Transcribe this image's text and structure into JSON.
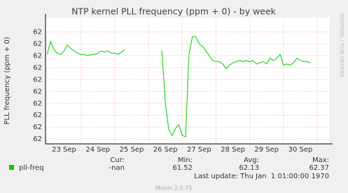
{
  "chart_data": {
    "type": "line",
    "title": "NTP kernel PLL frequency (ppm + 0) - by week",
    "y_label": "PLL frequency (ppm + 0)",
    "side_text": "RRDTOOL / TOBI OETIKER",
    "categories": [
      null,
      null,
      null,
      null,
      null,
      "23 Sep",
      null,
      null,
      null,
      null,
      null,
      null,
      null,
      null,
      null,
      "24 Sep",
      null,
      null,
      null,
      null,
      null,
      null,
      null,
      null,
      null,
      "25 Sep",
      null,
      null,
      null,
      null,
      null,
      null,
      null,
      null,
      null,
      "26 Sep",
      null,
      null,
      null,
      null,
      null,
      null,
      null,
      null,
      null,
      "27 Sep",
      null,
      null,
      null,
      null,
      null,
      null,
      null,
      null,
      null,
      "28 Sep",
      null,
      null,
      null,
      null,
      null,
      null,
      null,
      null,
      null,
      "29 Sep",
      null,
      null,
      null,
      null,
      null,
      null,
      null,
      null,
      null,
      "30 Sep",
      null,
      null,
      null,
      null,
      null,
      null,
      null,
      null
    ],
    "series": [
      {
        "name": "pll-freq",
        "color": "#00cc00",
        "values": [
          62.21,
          62.32,
          62.25,
          62.22,
          62.21,
          62.24,
          62.29,
          62.26,
          62.24,
          62.22,
          62.21,
          62.21,
          62.2,
          62.21,
          62.21,
          62.22,
          62.24,
          62.23,
          62.24,
          62.22,
          62.22,
          62.21,
          62.23,
          62.25,
          null,
          null,
          null,
          null,
          null,
          null,
          null,
          null,
          null,
          null,
          62.24,
          61.8,
          61.58,
          61.53,
          61.59,
          61.62,
          61.53,
          61.52,
          62.21,
          62.36,
          62.36,
          62.3,
          62.28,
          62.24,
          62.2,
          62.16,
          62.15,
          62.15,
          62.13,
          62.09,
          62.12,
          62.14,
          62.15,
          62.16,
          62.15,
          62.16,
          62.15,
          62.16,
          62.13,
          62.14,
          62.15,
          62.13,
          62.18,
          62.16,
          62.18,
          62.21,
          62.12,
          62.13,
          62.12,
          62.14,
          62.18,
          62.16,
          62.15,
          62.15,
          62.14,
          null,
          null,
          null,
          null,
          null
        ]
      }
    ],
    "ylim": [
      61.46,
      62.52
    ],
    "yticks": [
      {
        "value": 61.5,
        "label": "62"
      },
      {
        "value": 61.6,
        "label": "62"
      },
      {
        "value": 61.7,
        "label": "62"
      },
      {
        "value": 61.8,
        "label": "62"
      },
      {
        "value": 61.9,
        "label": "62"
      },
      {
        "value": 62.0,
        "label": "62"
      },
      {
        "value": 62.1,
        "label": "62"
      },
      {
        "value": 62.2,
        "label": "62"
      },
      {
        "value": 62.3,
        "label": "62"
      },
      {
        "value": 62.4,
        "label": "62"
      }
    ],
    "grid": true,
    "legend": {
      "cur_label": "Cur:",
      "cur": "-nan",
      "min_label": "Min:",
      "min": 61.52,
      "avg_label": "Avg:",
      "avg": 62.13,
      "max_label": "Max:",
      "max": 62.37,
      "last_update": "Last update: Thu Jan  1 01:00:00 1970"
    },
    "footer": "Munin 2.0.75"
  }
}
